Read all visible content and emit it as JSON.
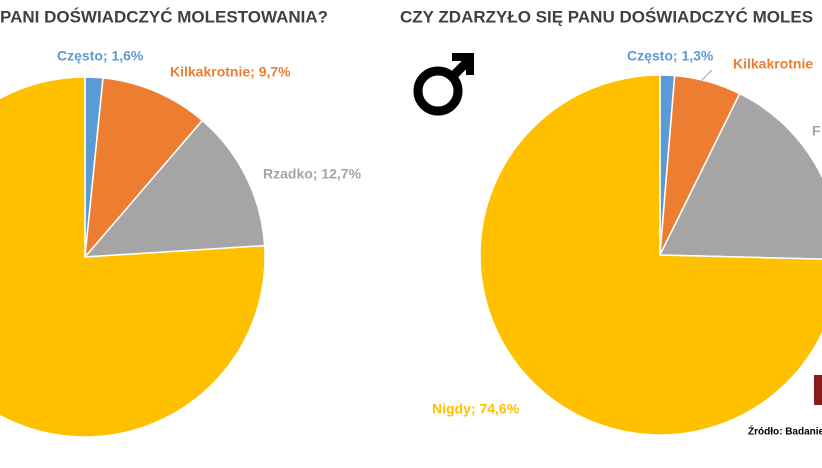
{
  "chart_data": [
    {
      "type": "pie",
      "title": "PANI DOŚWIADCZYĆ MOLESTOWANIA?",
      "values": [
        1.6,
        9.7,
        12.7,
        76.0
      ],
      "value_labels": [
        "Często; 1,6%",
        "Kilkakrotnie; 9,7%",
        "Rzadko; 12,7%",
        null
      ],
      "colors": [
        "#5b9bd5",
        "#ed7d31",
        "#a5a5a5",
        "#ffc000"
      ]
    },
    {
      "type": "pie",
      "title": "CZY ZDARZYŁO SIĘ PANU DOŚWIADCZYĆ MOLES",
      "values": [
        1.3,
        6.0,
        18.1,
        74.6
      ],
      "value_labels": [
        "Często; 1,3%",
        "Kilkakrotnie",
        "F",
        "Nigdy; 74,6%"
      ],
      "colors": [
        "#5b9bd5",
        "#ed7d31",
        "#a5a5a5",
        "#ffc000"
      ],
      "source": "Źródło: Badanie"
    }
  ]
}
